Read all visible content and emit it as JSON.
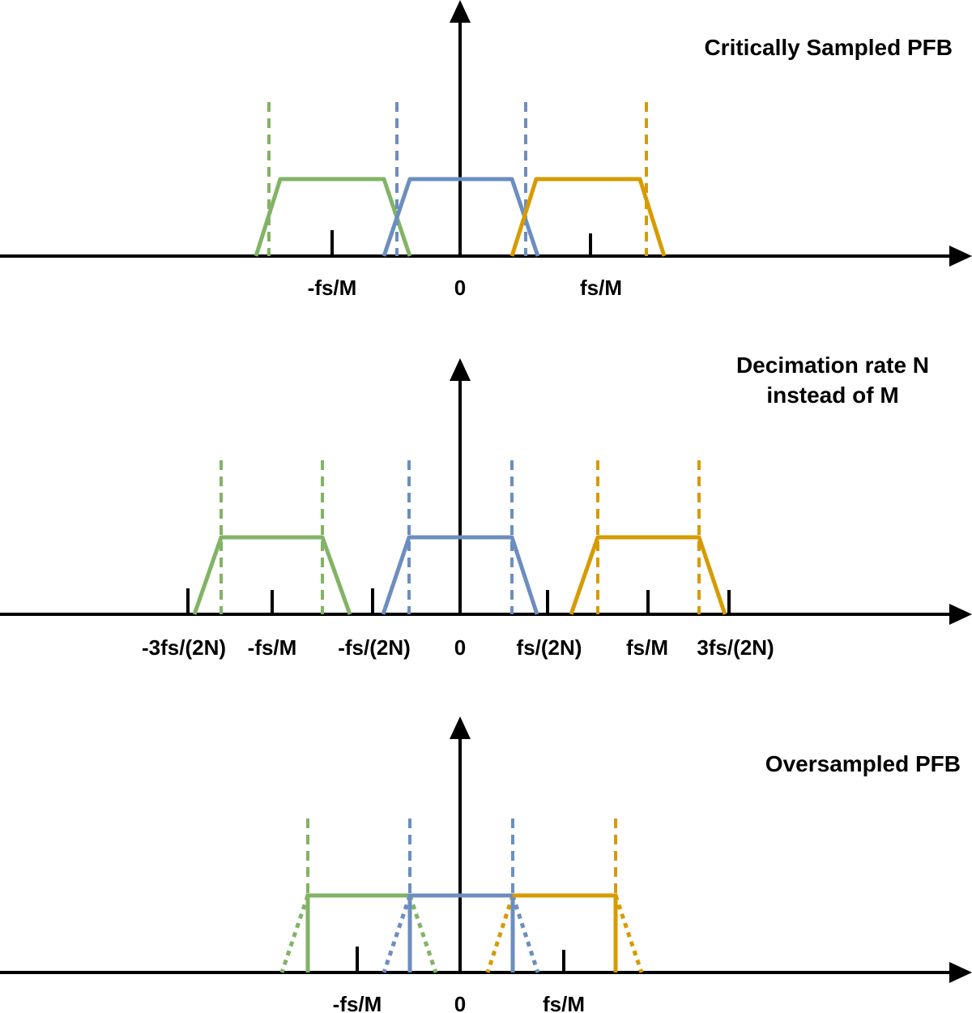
{
  "colors": {
    "axis": "#000000",
    "green": "#82b366",
    "blue": "#6c8ebf",
    "orange": "#d79b00"
  },
  "panels": [
    {
      "id": "critically-sampled",
      "title_lines": [
        "Critically Sampled PFB"
      ],
      "tick_labels": [
        "-fs/M",
        "0",
        "fs/M"
      ]
    },
    {
      "id": "decimation",
      "title_lines": [
        "Decimation rate N",
        "instead of M"
      ],
      "tick_labels": [
        "-3fs/(2N)",
        "-fs/M",
        "-fs/(2N)",
        "0",
        "fs/(2N)",
        "fs/M",
        "3fs/(2N)"
      ]
    },
    {
      "id": "oversampled",
      "title_lines": [
        "Oversampled PFB"
      ],
      "tick_labels": [
        "-fs/M",
        "0",
        "fs/M"
      ]
    }
  ]
}
